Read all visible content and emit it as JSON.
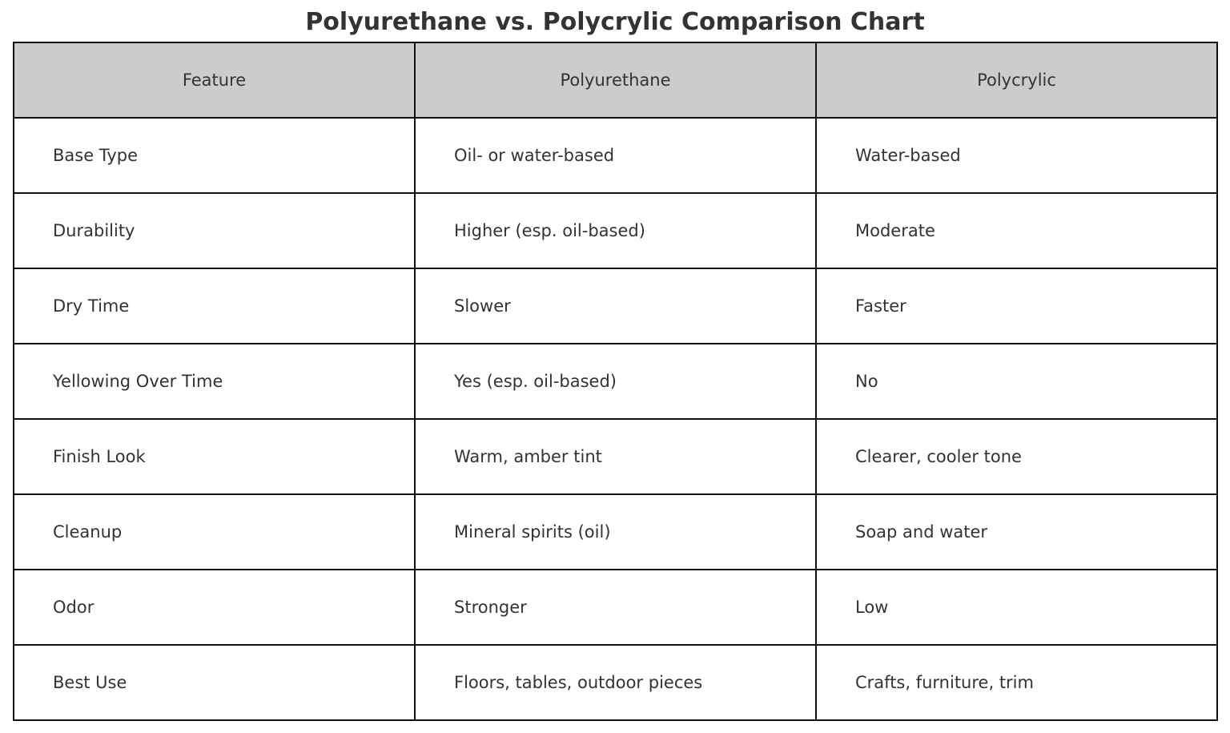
{
  "chart_data": {
    "type": "table",
    "title": "Polyurethane vs. Polycrylic Comparison Chart",
    "columns": [
      "Feature",
      "Polyurethane",
      "Polycrylic"
    ],
    "rows": [
      [
        "Base Type",
        "Oil- or water-based",
        "Water-based"
      ],
      [
        "Durability",
        "Higher (esp. oil-based)",
        "Moderate"
      ],
      [
        "Dry Time",
        "Slower",
        "Faster"
      ],
      [
        "Yellowing Over Time",
        "Yes (esp. oil-based)",
        "No"
      ],
      [
        "Finish Look",
        "Warm, amber tint",
        "Clearer, cooler tone"
      ],
      [
        "Cleanup",
        "Mineral spirits (oil)",
        "Soap and water"
      ],
      [
        "Odor",
        "Stronger",
        "Low"
      ],
      [
        "Best Use",
        "Floors, tables, outdoor pieces",
        "Crafts, furniture, trim"
      ]
    ],
    "header_color": "#cccccc",
    "border_color": "#111111",
    "text_color": "#333333"
  }
}
